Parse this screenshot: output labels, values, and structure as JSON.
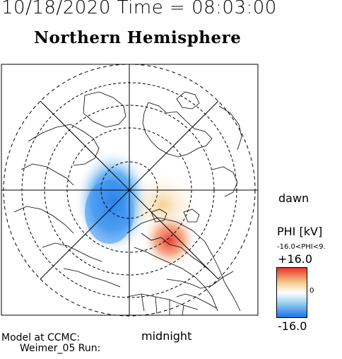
{
  "header": {
    "datetime": "10/18/2020 Time = 08:03:00",
    "title": "Northern Hemisphere"
  },
  "labels": {
    "dawn": "dawn",
    "midnight": "midnight",
    "model_line1": "Model at CCMC:",
    "model_line2": "Weimer_05 Run:"
  },
  "colorbar": {
    "title": "PHI [kV]",
    "range_text": "-16.0<PHI<9.",
    "max_label": "+16.0",
    "zero_label": "0",
    "min_label": "-16.0",
    "colors": {
      "positive": "#e8342a",
      "mid_positive": "#f2cc8a",
      "zero": "#ffffff",
      "mid_negative": "#9fd3f0",
      "negative": "#1a73e8"
    }
  },
  "map": {
    "projection": "north polar stereographic",
    "latitude_circles": "dashed",
    "frame_color": "#000000"
  }
}
